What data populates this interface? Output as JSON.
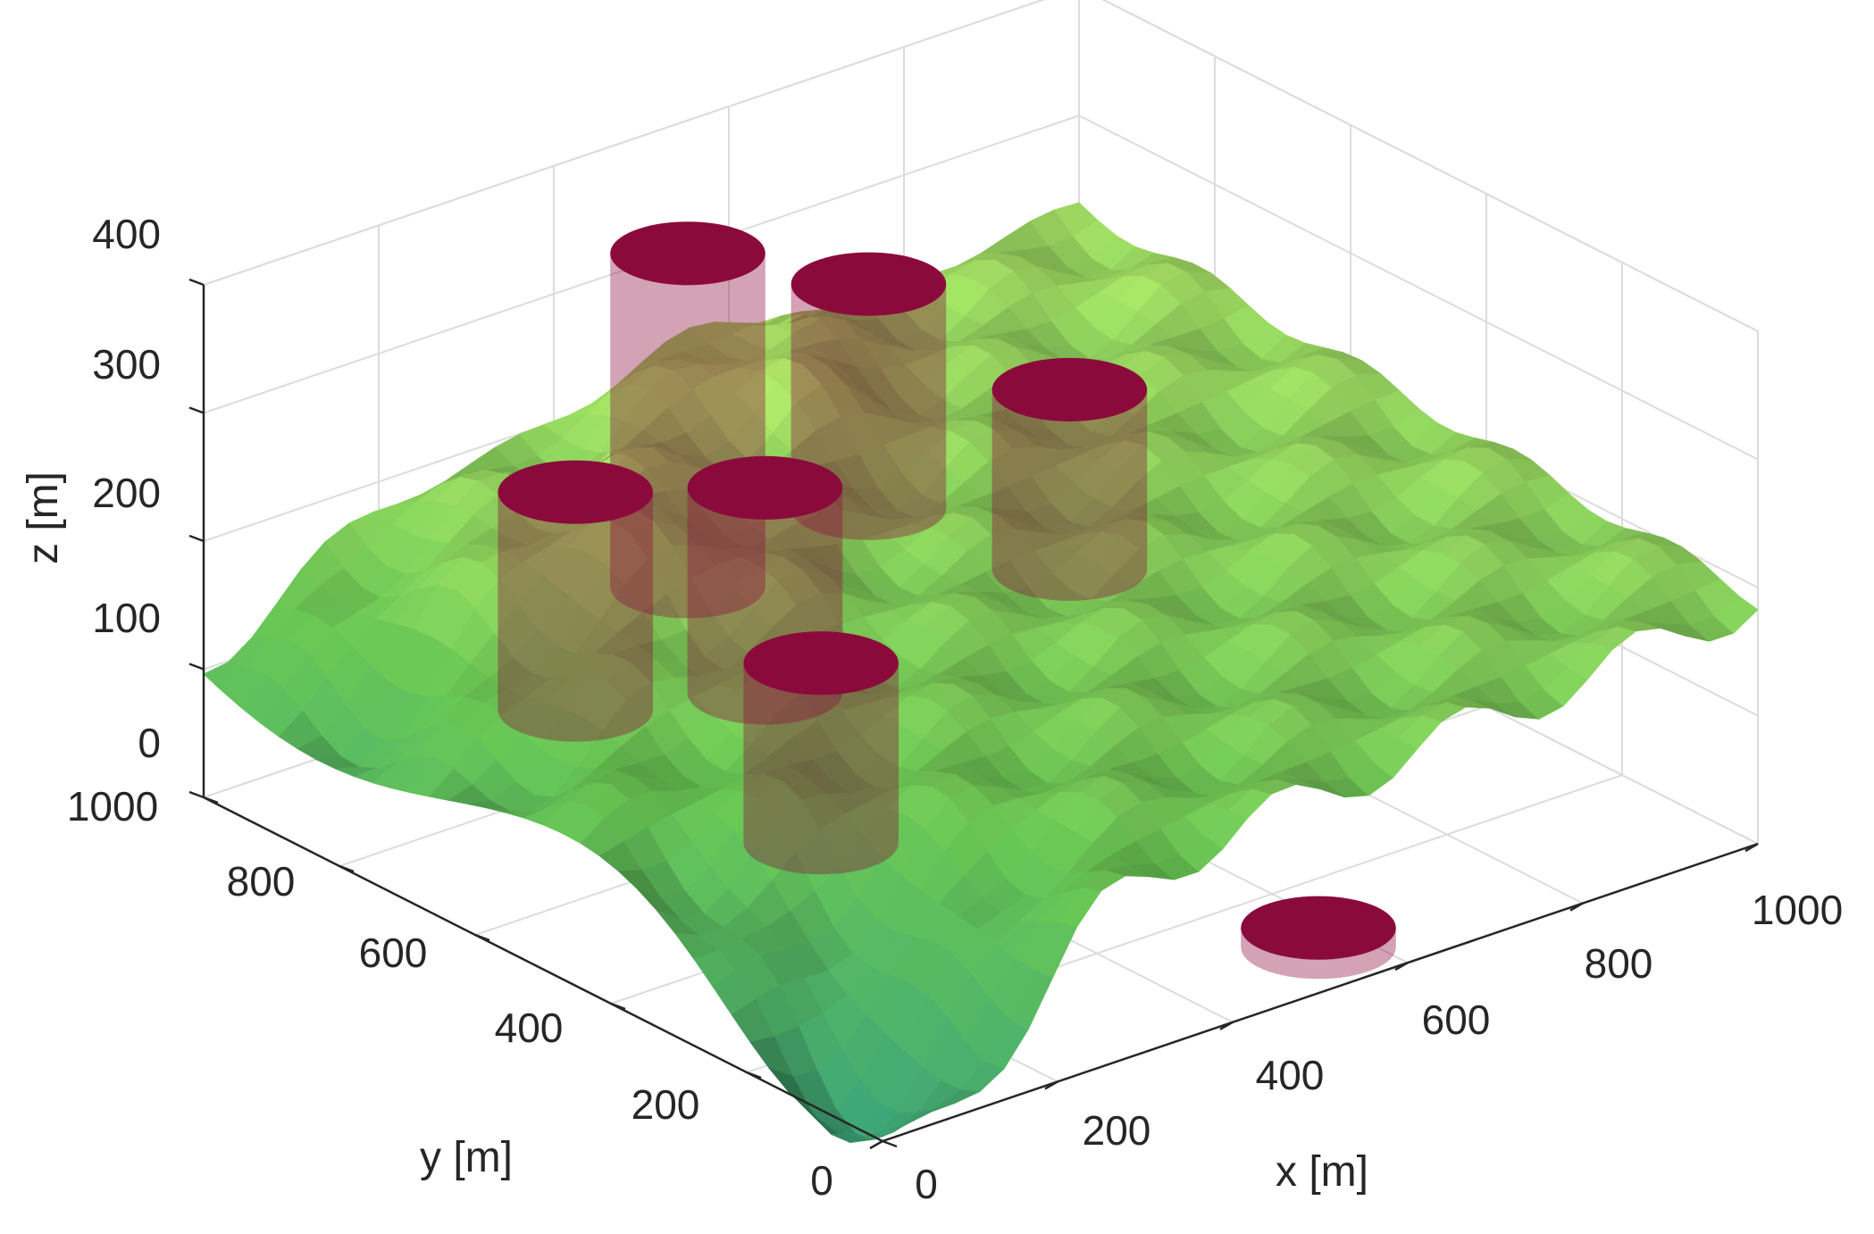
{
  "chart_data": {
    "type": "3d-surface",
    "xlabel": "x [m]",
    "ylabel": "y [m]",
    "zlabel": "z [m]",
    "xlim": [
      0,
      1000
    ],
    "ylim": [
      0,
      1000
    ],
    "zlim": [
      0,
      400
    ],
    "x_ticks": [
      "0",
      "200",
      "400",
      "600",
      "800",
      "1000"
    ],
    "y_ticks": [
      "0",
      "200",
      "400",
      "600",
      "800",
      "1000"
    ],
    "z_ticks": [
      "0",
      "100",
      "200",
      "300",
      "400"
    ],
    "grid": true,
    "surface_colors": {
      "low": "#2e8b6e",
      "mid": "#5cae4a",
      "high": "#c8e36a"
    },
    "cylinder_color": "#8b0a3c",
    "cylinders": [
      {
        "x": 130,
        "y": 620,
        "z_bottom": 140,
        "z_top": 310
      },
      {
        "x": 460,
        "y": 880,
        "z_bottom": 90,
        "z_top": 350
      },
      {
        "x": 300,
        "y": 560,
        "z_bottom": 130,
        "z_top": 290
      },
      {
        "x": 240,
        "y": 400,
        "z_bottom": 70,
        "z_top": 210
      },
      {
        "x": 620,
        "y": 820,
        "z_bottom": 130,
        "z_top": 305
      },
      {
        "x": 710,
        "y": 640,
        "z_bottom": 110,
        "z_top": 250
      },
      {
        "x": 560,
        "y": 80,
        "z_bottom": 0,
        "z_top": 15
      }
    ]
  }
}
